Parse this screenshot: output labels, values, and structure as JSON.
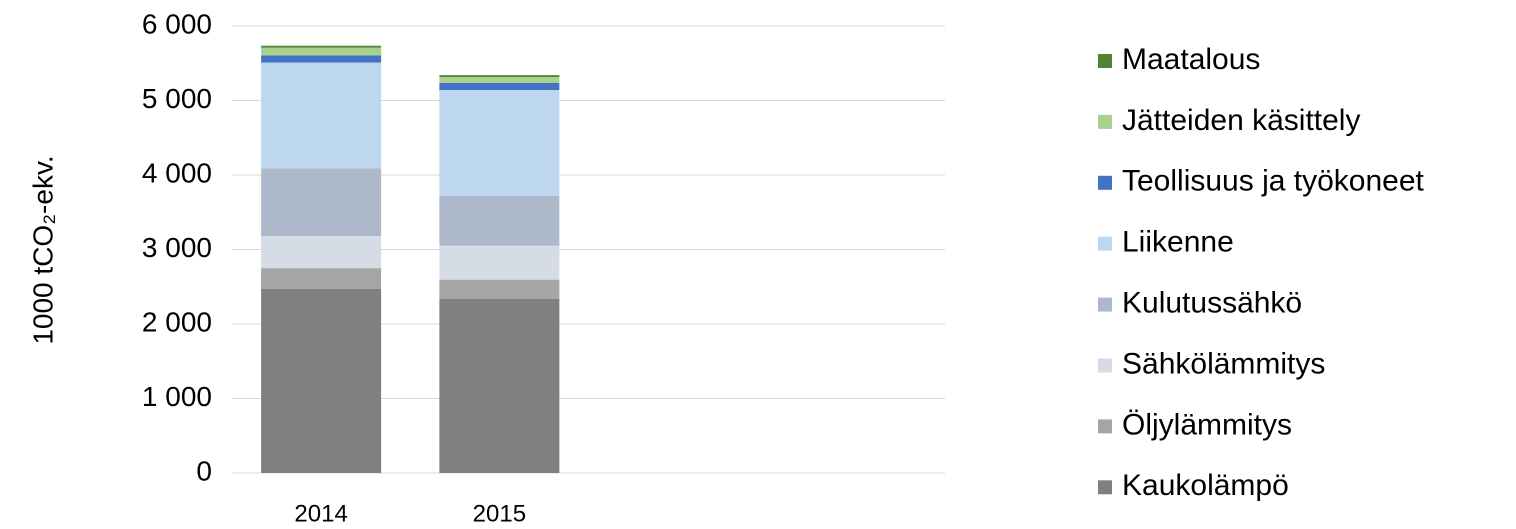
{
  "chart_data": {
    "type": "stacked_bar",
    "y_axis_label": "1000 tCO₂-ekv.",
    "categories": [
      "2014",
      "2015",
      null,
      null
    ],
    "series": [
      {
        "name": "Kaukolämpö",
        "color": "#808080",
        "values": [
          2470,
          2340,
          null,
          null
        ]
      },
      {
        "name": "Öljylämmitys",
        "color": "#a5a5a5",
        "values": [
          280,
          255,
          null,
          null
        ]
      },
      {
        "name": "Sähkölämmitys",
        "color": "#d6dce5",
        "values": [
          430,
          455,
          null,
          null
        ]
      },
      {
        "name": "Kulutussähkö",
        "color": "#adb9ca",
        "values": [
          910,
          670,
          null,
          null
        ]
      },
      {
        "name": "Liikenne",
        "color": "#bdd7ee",
        "values": [
          1420,
          1420,
          null,
          null
        ]
      },
      {
        "name": "Teollisuus ja työkoneet",
        "color": "#4472c4",
        "values": [
          95,
          95,
          null,
          null
        ]
      },
      {
        "name": "Jätteiden käsittely",
        "color": "#a9d18e",
        "values": [
          105,
          80,
          null,
          null
        ]
      },
      {
        "name": "Maatalous",
        "color": "#548235",
        "values": [
          25,
          25,
          null,
          null
        ]
      }
    ],
    "ylim": [
      0,
      6000
    ],
    "yticks": [
      0,
      {
        "value": 1000,
        "label": "1 000"
      },
      {
        "value": 2000,
        "label": "2 000"
      },
      {
        "value": 3000,
        "label": "3 000"
      },
      {
        "value": 4000,
        "label": "4 000"
      },
      {
        "value": 5000,
        "label": "5 000"
      },
      {
        "value": 6000,
        "label": "6 000"
      }
    ],
    "grid": true,
    "legend": "right"
  }
}
